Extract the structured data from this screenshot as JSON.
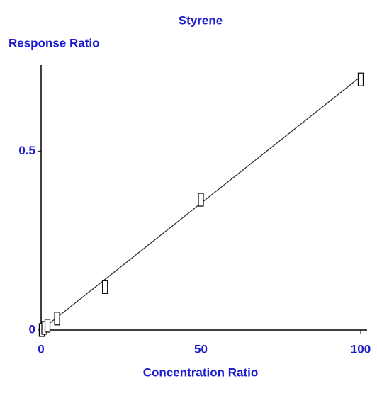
{
  "chart_data": {
    "type": "scatter",
    "title": "Styrene",
    "x_label": "Concentration Ratio",
    "y_label": "Response Ratio",
    "x": [
      0.2,
      1,
      2,
      5,
      20,
      50,
      100
    ],
    "values": [
      0,
      0.006,
      0.012,
      0.032,
      0.12,
      0.364,
      0.7
    ],
    "fit_line": {
      "x": [
        0,
        100.7
      ],
      "y": [
        0,
        0.713
      ]
    },
    "xlim": [
      0,
      102
    ],
    "ylim": [
      0,
      0.74
    ],
    "xticks": [
      0,
      50,
      100
    ],
    "yticks": [
      0,
      0.5
    ],
    "marker_color": "#000000",
    "line_color": "#333333"
  }
}
